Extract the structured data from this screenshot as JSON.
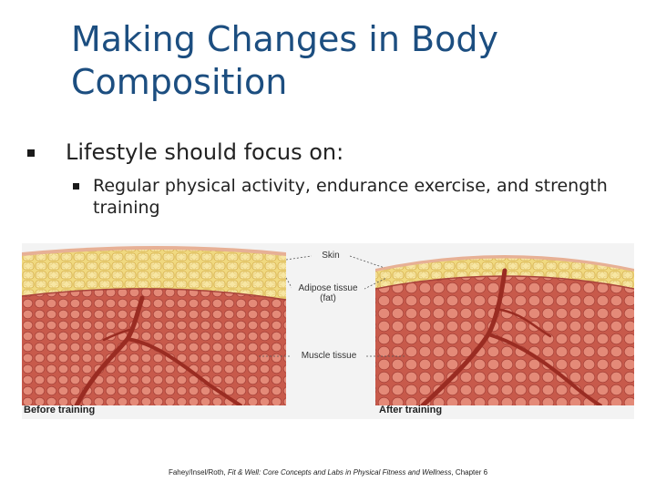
{
  "slide": {
    "title": "Making Changes in Body Composition",
    "bullet_1": "Lifestyle should focus on:",
    "bullet_1_1": "Regular physical activity, endurance exercise, and strength training"
  },
  "figure": {
    "before_label": "Before training",
    "after_label": "After training",
    "callouts": {
      "skin": "Skin",
      "adipose_line1": "Adipose tissue",
      "adipose_line2": "(fat)",
      "muscle": "Muscle tissue"
    },
    "colors": {
      "fat": "#f0d980",
      "muscle": "#cf6a5a",
      "muscle_cell": "#e48a78",
      "skin": "#e7b095",
      "vessel": "#9a2c22"
    }
  },
  "citation": {
    "authors": "Fahey/Insel/Roth, ",
    "book_title": "Fit & Well: Core Concepts and Labs in Physical Fitness and Wellness",
    "chapter": ", Chapter 6"
  }
}
